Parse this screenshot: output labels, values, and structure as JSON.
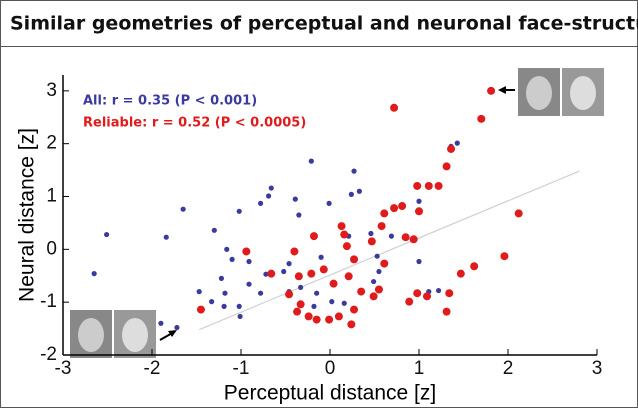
{
  "chart_data": {
    "type": "scatter",
    "title": "Similar geometries of perceptual and neuronal face-structures",
    "x_label": "Perceptual distance [z]",
    "y_label": "Neural distance [z]",
    "annotations": [
      {
        "text": "All: r = 0.35 (P < 0.001)",
        "color": "#3a3aa0"
      },
      {
        "text": "Reliable: r = 0.52 (P < 0.0005)",
        "color": "#e01b1b"
      }
    ],
    "xlim": [
      -3,
      3
    ],
    "ylim": [
      -2,
      3.3
    ],
    "xticks": [
      -3,
      -2,
      -1,
      0,
      1,
      2,
      3
    ],
    "yticks": [
      -2,
      -1,
      0,
      1,
      2,
      3
    ],
    "fit_line": {
      "x": [
        -1.47,
        2.8
      ],
      "y": [
        -1.52,
        1.48
      ],
      "color": "#d0d0d0"
    },
    "series": [
      {
        "color": "#3a3aa0",
        "x": [
          -2.65,
          -2.51,
          -1.65,
          -1.84,
          -1.3,
          -1.02,
          -1.16,
          -0.78,
          -0.69,
          -0.66,
          -0.39,
          -0.35,
          -0.21,
          0.27,
          0.24,
          0.33,
          0.46,
          0.69,
          -0.01,
          -0.1,
          -0.52,
          -0.46,
          -0.72,
          -0.91,
          -1.1,
          -1.22,
          -1.47,
          -1.33,
          -1.18,
          -1.02,
          -1.01,
          -0.78,
          -0.46,
          -0.33,
          -0.15,
          -0.18,
          0.02,
          0.16,
          0.53,
          0.55,
          0.49,
          1.0,
          1.0,
          1.11,
          1.22,
          1.36,
          1.43,
          -0.91,
          -1.19,
          -1.9,
          -1.72,
          0.21
        ],
        "y": [
          -0.46,
          0.28,
          0.76,
          0.23,
          0.36,
          0.72,
          0,
          0.87,
          1.01,
          1.16,
          0.95,
          0.65,
          1.67,
          1.48,
          1.04,
          1.1,
          0.3,
          0.25,
          0.87,
          -0.15,
          -0.42,
          -0.27,
          -0.47,
          -0.23,
          -0.19,
          -0.55,
          -0.8,
          -0.99,
          -0.83,
          -1.08,
          -1.27,
          -0.83,
          -0.8,
          -0.72,
          -0.83,
          -1.08,
          -0.99,
          -1.02,
          -0.13,
          -0.42,
          -0.61,
          -0.23,
          0.91,
          -0.8,
          -0.78,
          1.95,
          2.01,
          -0.66,
          -1.08,
          -1.4,
          -1.48,
          0.25
        ]
      },
      {
        "color": "#e01b1b",
        "x": [
          1.81,
          0.72,
          1.7,
          1.36,
          1.31,
          1.22,
          1.11,
          0.98,
          0.81,
          0.72,
          0.61,
          1.0,
          0.58,
          0.47,
          0.85,
          0.13,
          0.16,
          0.19,
          -0.18,
          -0.4,
          -0.66,
          -0.35,
          -0.21,
          -0.07,
          0.21,
          0.35,
          0.49,
          0.27,
          0.24,
          0.1,
          -0.01,
          -0.15,
          -0.24,
          -0.37,
          -0.33,
          -0.46,
          0.04,
          0.55,
          0.61,
          0.89,
          0.98,
          1.09,
          1.34,
          1.31,
          1.47,
          1.62,
          2.12,
          1.96,
          -0.94,
          -1.45,
          0.27,
          0.94
        ],
        "y": [
          3.0,
          2.68,
          2.47,
          1.9,
          1.57,
          1.2,
          1.2,
          1.2,
          0.82,
          0.78,
          0.68,
          0.72,
          0.44,
          0.15,
          0.23,
          0.44,
          0.28,
          0.06,
          0.25,
          -0.04,
          -0.46,
          -0.51,
          -0.46,
          -0.38,
          -0.51,
          -0.8,
          -0.89,
          -1.14,
          -1.42,
          -1.27,
          -1.33,
          -1.33,
          -1.27,
          -1.18,
          -1.04,
          -0.85,
          -0.65,
          -0.76,
          -0.27,
          -0.99,
          -0.83,
          -0.89,
          -0.83,
          -1.18,
          -0.46,
          -0.32,
          0.68,
          -0.13,
          -0.04,
          -1.14,
          -0.19,
          0.19
        ]
      }
    ]
  }
}
